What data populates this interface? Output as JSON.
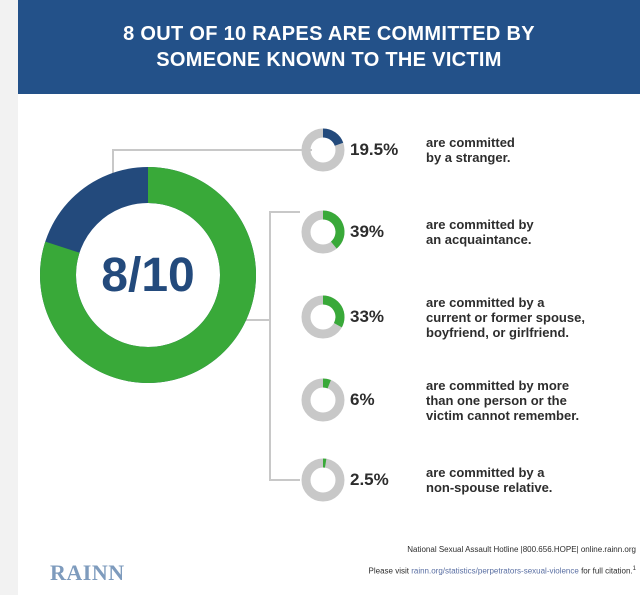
{
  "header": {
    "title_line1": "8 OUT OF 10 RAPES ARE COMMITTED BY",
    "title_line2": "SOMEONE KNOWN TO THE VICTIM"
  },
  "main_donut": {
    "label": "8/10",
    "value": 0.8,
    "known_color": "#39a939",
    "unknown_color": "#234a7c",
    "track_color": "#ffffff"
  },
  "chart_data": {
    "type": "pie",
    "title": "8 OUT OF 10 RAPES ARE COMMITTED BY SOMEONE KNOWN TO THE VICTIM",
    "categories": [
      "are committed by a stranger.",
      "are committed by an acquaintance.",
      "are committed by a current or former spouse, boyfriend, or girlfriend.",
      "are committed by more than one person or the victim cannot remember.",
      "are committed by a non-spouse relative."
    ],
    "values": [
      19.5,
      39,
      33,
      6,
      2.5
    ],
    "colors": [
      "#234a7c",
      "#39a939",
      "#39a939",
      "#39a939",
      "#39a939"
    ]
  },
  "items": [
    {
      "percent": "19.5%",
      "lines": [
        "are committed",
        "by a stranger."
      ]
    },
    {
      "percent": "39%",
      "lines": [
        "are committed by",
        "an acquaintance."
      ]
    },
    {
      "percent": "33%",
      "lines": [
        "are committed by a",
        "current or former spouse,",
        "boyfriend, or girlfriend."
      ]
    },
    {
      "percent": "6%",
      "lines": [
        "are committed by more",
        "than one person or the",
        "victim cannot remember."
      ]
    },
    {
      "percent": "2.5%",
      "lines": [
        "are committed by a",
        "non-spouse relative."
      ]
    }
  ],
  "footer": {
    "logo": "RAINN",
    "hotline": "National Sexual Assault Hotline |800.656.HOPE| online.rainn.org",
    "visit_prefix": "Please visit ",
    "visit_link": "rainn.org/statistics/perpetrators-sexual-violence",
    "visit_suffix": " for full citation.",
    "footnote": "1"
  },
  "small_donut_track": "#c8c8c8"
}
